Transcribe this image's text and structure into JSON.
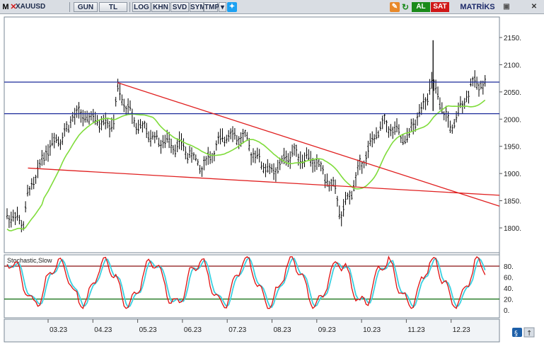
{
  "toolbar": {
    "menu_letter": "M",
    "symbol": "XAUUSD",
    "period": "GUN",
    "currency": "TL",
    "log": "LOG",
    "khn": "KHN",
    "svd": "SVD",
    "sym": "SYM",
    "tmp": "TMP",
    "al": "AL",
    "sat": "SAT",
    "brand": "MATRİKS",
    "colors": {
      "al": "#1a8a1a",
      "sat": "#d01818",
      "brand": "#1d2a6a"
    }
  },
  "chart_data": [
    {
      "type": "candlestick",
      "symbol": "XAUUSD",
      "x_ticks": [
        "03.23",
        "04.23",
        "05.23",
        "06.23",
        "07.23",
        "08.23",
        "09.23",
        "10.23",
        "11.23",
        "12.23"
      ],
      "y_ticks": [
        1800,
        1850,
        1900,
        1950,
        2000,
        2050,
        2100,
        2150
      ],
      "ylim": [
        1780,
        2190
      ],
      "monthly_path": [
        [
          "02.23-start",
          1880
        ],
        [
          "02.23-mid",
          1830
        ],
        [
          "02.23-end",
          1810
        ],
        [
          "03.23-start",
          1860
        ],
        [
          "03.23-mid",
          1950
        ],
        [
          "03.23-end",
          1980
        ],
        [
          "04.23-start",
          2010
        ],
        [
          "04.23-mid",
          2000
        ],
        [
          "04.23-end",
          1990
        ],
        [
          "05.23-start",
          2050
        ],
        [
          "05.23-mid",
          1990
        ],
        [
          "05.23-end",
          1960
        ],
        [
          "06.23-start",
          1960
        ],
        [
          "06.23-mid",
          1950
        ],
        [
          "06.23-end",
          1910
        ],
        [
          "07.23-start",
          1925
        ],
        [
          "07.23-mid",
          1975
        ],
        [
          "07.23-end",
          1960
        ],
        [
          "08.23-start",
          1940
        ],
        [
          "08.23-mid",
          1900
        ],
        [
          "08.23-end",
          1940
        ],
        [
          "09.23-start",
          1935
        ],
        [
          "09.23-mid",
          1920
        ],
        [
          "09.23-end",
          1860
        ],
        [
          "10.23-start",
          1820
        ],
        [
          "10.23-mid",
          1920
        ],
        [
          "10.23-end",
          1990
        ],
        [
          "11.23-start",
          1990
        ],
        [
          "11.23-mid",
          1960
        ],
        [
          "11.23-end",
          2040
        ],
        [
          "12.23-start",
          2070
        ],
        [
          "12.23-mid",
          1980
        ],
        [
          "12.23-end",
          2065
        ]
      ],
      "horizontal_lines": [
        {
          "value": 2068,
          "color": "#1b2a9a"
        },
        {
          "value": 2010,
          "color": "#1b2a9a"
        }
      ],
      "trend_lines": [
        {
          "from": [
            "05.23-start",
            2067
          ],
          "to": [
            "12.23-end",
            1840
          ],
          "color": "#e02020"
        },
        {
          "from": [
            "03.23-start",
            1910
          ],
          "to": [
            "12.23-end",
            1860
          ],
          "color": "#e02020"
        }
      ],
      "moving_average": {
        "color": "#7fdc3a"
      }
    },
    {
      "type": "line",
      "title": "Stochastic,Slow",
      "y_ticks": [
        0,
        20,
        40,
        60,
        80
      ],
      "ylim": [
        0,
        100
      ],
      "reference_lines": [
        {
          "value": 80,
          "color": "#8b1010"
        },
        {
          "value": 20,
          "color": "#0a6a0a"
        }
      ],
      "series": [
        {
          "color": "#e01010"
        },
        {
          "color": "#3ad0e0"
        }
      ]
    }
  ]
}
